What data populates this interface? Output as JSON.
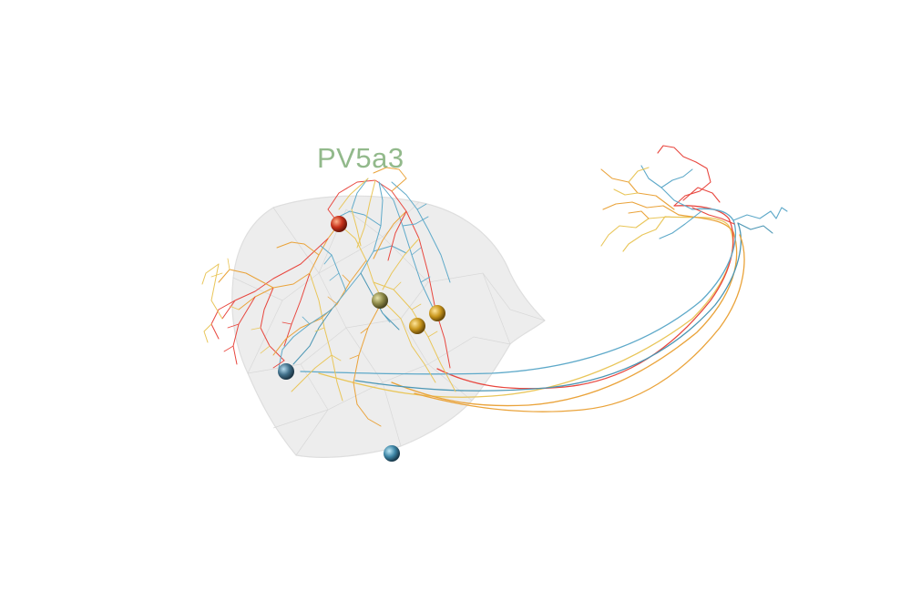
{
  "scene": {
    "label": "PV5a3",
    "label_color": "#92b98b",
    "mesh_fill": "#e9e9e9",
    "mesh_edge": "#d2d2d2",
    "neuron_colors": {
      "red": "#e8473f",
      "orange": "#eaa33a",
      "yellow": "#e9c65a",
      "blue": "#5ea9c9",
      "teal": "#4b96b4"
    },
    "somas": [
      {
        "name": "soma-red",
        "color": "#c7321c"
      },
      {
        "name": "soma-olive",
        "color": "#8e8a4a"
      },
      {
        "name": "soma-gold-1",
        "color": "#c9971e"
      },
      {
        "name": "soma-gold-2",
        "color": "#d39a27"
      },
      {
        "name": "soma-steel-1",
        "color": "#41708a"
      },
      {
        "name": "soma-steel-2",
        "color": "#3e86a6"
      }
    ]
  }
}
